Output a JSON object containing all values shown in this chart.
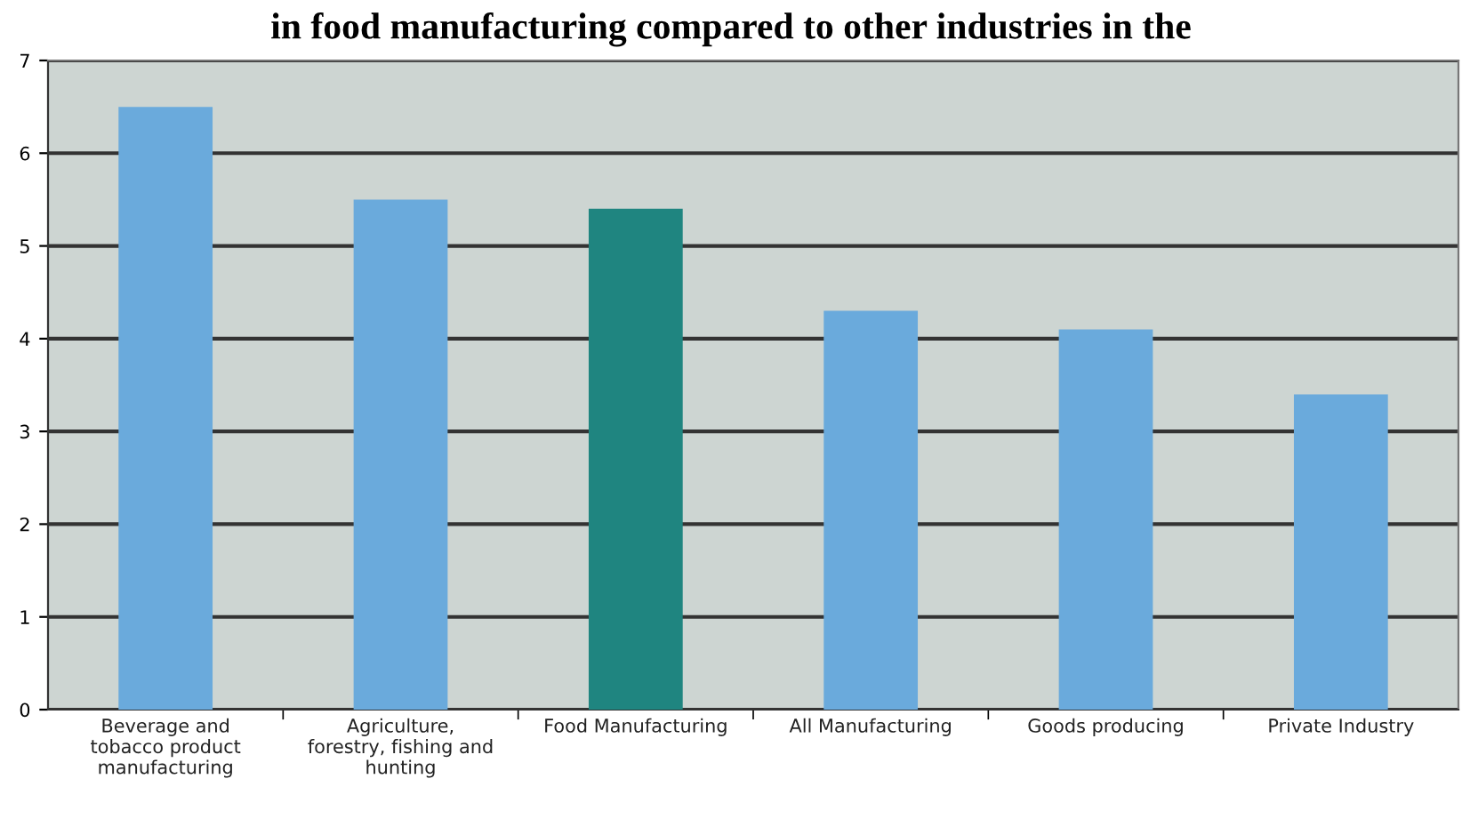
{
  "chart_data": {
    "type": "bar",
    "title": "in food manufacturing compared to other industries in the",
    "categories": [
      "Beverage and\ntobacco product\nmanufacturing",
      "Agriculture,\nforestry, fishing and\nhunting",
      "Food Manufacturing",
      "All Manufacturing",
      "Goods producing",
      "Private Industry"
    ],
    "values": [
      6.5,
      5.5,
      5.4,
      4.3,
      4.1,
      3.4
    ],
    "colors": [
      "#6aaadc",
      "#6aaadc",
      "#1f8580",
      "#6aaadc",
      "#6aaadc",
      "#6aaadc"
    ],
    "ylim": [
      0,
      7
    ],
    "yticks": [
      0,
      1,
      2,
      3,
      4,
      5,
      6,
      7
    ],
    "grid": "y",
    "legend": false
  }
}
